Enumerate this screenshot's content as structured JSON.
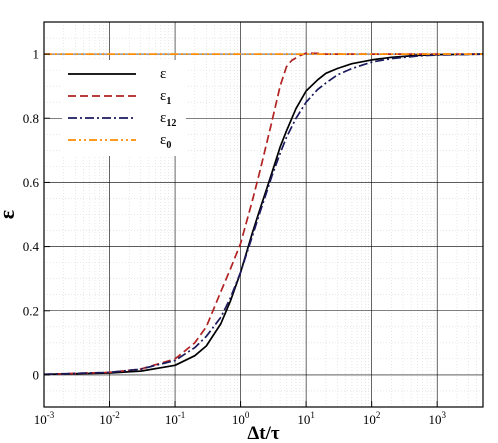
{
  "chart_data": {
    "type": "line",
    "xlabel": "Δt/τ",
    "ylabel": "ε",
    "x_scale": "log",
    "xlim": [
      0.001,
      5000
    ],
    "ylim": [
      -0.1,
      1.1
    ],
    "x_ticks": [
      {
        "value": 0.001,
        "base": "10",
        "exp": "-3"
      },
      {
        "value": 0.01,
        "base": "10",
        "exp": "-2"
      },
      {
        "value": 0.1,
        "base": "10",
        "exp": "-1"
      },
      {
        "value": 1,
        "base": "10",
        "exp": "0"
      },
      {
        "value": 10,
        "base": "10",
        "exp": "1"
      },
      {
        "value": 100,
        "base": "10",
        "exp": "2"
      },
      {
        "value": 1000,
        "base": "10",
        "exp": "3"
      }
    ],
    "y_ticks": [
      0,
      0.2,
      0.4,
      0.6,
      0.8,
      1
    ],
    "y_tick_labels": [
      "0",
      "0.2",
      "0.4",
      "0.6",
      "0.8",
      "1"
    ],
    "grid": {
      "major": true,
      "minor": true
    },
    "legend_position": "top-left",
    "series": [
      {
        "name": "ε",
        "name_base": "ε",
        "name_sub": "",
        "color": "#000000",
        "dash": "solid",
        "x": [
          0.001,
          0.01,
          0.03,
          0.1,
          0.2,
          0.3,
          0.5,
          0.7,
          1,
          1.5,
          2,
          2.5,
          3,
          4,
          5,
          7,
          10,
          15,
          20,
          30,
          50,
          100,
          200,
          500,
          1000,
          5000
        ],
        "y": [
          0.002,
          0.006,
          0.012,
          0.03,
          0.06,
          0.09,
          0.16,
          0.23,
          0.32,
          0.44,
          0.52,
          0.58,
          0.63,
          0.71,
          0.76,
          0.83,
          0.885,
          0.92,
          0.94,
          0.955,
          0.97,
          0.982,
          0.99,
          0.996,
          0.998,
          1.0
        ]
      },
      {
        "name": "ε1",
        "name_base": "ε",
        "name_sub": "1",
        "color": "#b22222",
        "dash": "dashed",
        "x": [
          0.001,
          0.01,
          0.03,
          0.1,
          0.2,
          0.3,
          0.5,
          0.7,
          1,
          1.5,
          2,
          3,
          4,
          5,
          6,
          8,
          10,
          15,
          20,
          50,
          100,
          1000,
          5000
        ],
        "y": [
          0.002,
          0.008,
          0.018,
          0.05,
          0.1,
          0.15,
          0.26,
          0.33,
          0.41,
          0.54,
          0.64,
          0.79,
          0.9,
          0.96,
          0.98,
          0.995,
          1.003,
          1.002,
          1.0,
          1.0,
          1.0,
          1.0,
          1.0
        ]
      },
      {
        "name": "ε12",
        "name_base": "ε",
        "name_sub": "12",
        "color": "#1a1a5e",
        "dash": "dashdot",
        "x": [
          0.001,
          0.01,
          0.03,
          0.1,
          0.2,
          0.3,
          0.5,
          0.7,
          1,
          1.5,
          2,
          2.5,
          3,
          4,
          5,
          7,
          10,
          15,
          20,
          30,
          50,
          100,
          200,
          500,
          1000,
          5000
        ],
        "y": [
          0.002,
          0.008,
          0.018,
          0.045,
          0.085,
          0.12,
          0.18,
          0.24,
          0.32,
          0.43,
          0.51,
          0.57,
          0.62,
          0.69,
          0.74,
          0.8,
          0.85,
          0.89,
          0.91,
          0.935,
          0.955,
          0.975,
          0.986,
          0.994,
          0.997,
          1.0
        ]
      },
      {
        "name": "ε0",
        "name_base": "ε",
        "name_sub": "0",
        "color": "#ff8c00",
        "dash": "dashdotdot",
        "x": [
          0.001,
          5000
        ],
        "y": [
          1.0,
          1.0
        ]
      }
    ]
  }
}
